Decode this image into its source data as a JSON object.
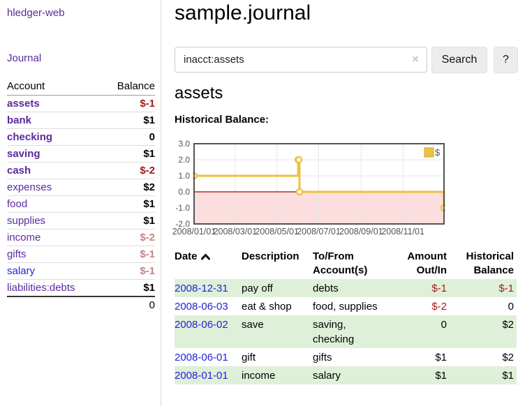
{
  "colors": {
    "link_purple": "#5b2a9d",
    "link_blue": "#2222dd",
    "negative_strong": "#9e1b1b",
    "negative_soft": "#c48484",
    "row_stripe_green": "#dff0d8",
    "chart_series_gold": "#EDC240",
    "chart_negative_fill": "#fcdede",
    "chart_zero_line": "#a40000",
    "chart_grid": "#e6e6e6",
    "chart_border": "#545454",
    "axis_text": "#545454"
  },
  "sidebar": {
    "brand": "hledger-web",
    "nav_journal": "Journal",
    "accounts": {
      "header_account": "Account",
      "header_balance": "Balance",
      "rows": [
        {
          "name": "assets",
          "indent": 0,
          "bold": true,
          "balance": "$-1",
          "neg": "strong",
          "link": "purple"
        },
        {
          "name": "bank",
          "indent": 1,
          "bold": true,
          "balance": "$1",
          "neg": "none",
          "link": "purple"
        },
        {
          "name": "checking",
          "indent": 2,
          "bold": true,
          "balance": "0",
          "neg": "none",
          "link": "purple"
        },
        {
          "name": "saving",
          "indent": 2,
          "bold": true,
          "balance": "$1",
          "neg": "none",
          "link": "purple"
        },
        {
          "name": "cash",
          "indent": 1,
          "bold": true,
          "balance": "$-2",
          "neg": "strong",
          "link": "purple"
        },
        {
          "name": "expenses",
          "indent": 0,
          "bold": false,
          "balance": "$2",
          "neg": "none",
          "link": "purple"
        },
        {
          "name": "food",
          "indent": 1,
          "bold": false,
          "balance": "$1",
          "neg": "none",
          "link": "purple"
        },
        {
          "name": "supplies",
          "indent": 1,
          "bold": false,
          "balance": "$1",
          "neg": "none",
          "link": "purple"
        },
        {
          "name": "income",
          "indent": 0,
          "bold": false,
          "balance": "$-2",
          "neg": "soft",
          "link": "purple"
        },
        {
          "name": "gifts",
          "indent": 1,
          "bold": false,
          "balance": "$-1",
          "neg": "soft",
          "link": "purple"
        },
        {
          "name": "salary",
          "indent": 1,
          "bold": false,
          "balance": "$-1",
          "neg": "soft",
          "link": "blue"
        },
        {
          "name": "liabilities:debts",
          "indent": 0,
          "bold": false,
          "balance": "$1",
          "neg": "none",
          "link": "purple"
        }
      ],
      "total": "0"
    }
  },
  "main": {
    "title": "sample.journal",
    "search": {
      "value": "inacct:assets",
      "clear": "×",
      "button": "Search",
      "help": "?"
    },
    "heading": "assets",
    "chart_label": "Historical Balance:"
  },
  "chart_data": {
    "type": "line",
    "steps": true,
    "title": "Historical Balance",
    "series": [
      {
        "name": "$",
        "color": "#EDC240",
        "points": [
          [
            "2008-01-01",
            1.0
          ],
          [
            "2008-06-01",
            2.0
          ],
          [
            "2008-06-02",
            2.0
          ],
          [
            "2008-06-03",
            0.0
          ],
          [
            "2008-12-31",
            -1.0
          ]
        ]
      }
    ],
    "x_range": [
      "2008-01-01",
      "2008-12-31"
    ],
    "ylim": [
      -2.0,
      3.0
    ],
    "y_ticks": [
      {
        "v": 3,
        "label": "3.0"
      },
      {
        "v": 2,
        "label": "2.0"
      },
      {
        "v": 1,
        "label": "1.0"
      },
      {
        "v": 0,
        "label": "0.0"
      },
      {
        "v": -1,
        "label": "-1.0"
      },
      {
        "v": -2,
        "label": "-2.0"
      }
    ],
    "x_ticks": [
      {
        "d": "2008-01-01",
        "label": "2008/01/01"
      },
      {
        "d": "2008-03-01",
        "label": "2008/03/01"
      },
      {
        "d": "2008-05-01",
        "label": "2008/05/01"
      },
      {
        "d": "2008-07-01",
        "label": "2008/07/01"
      },
      {
        "d": "2008-09-01",
        "label": "2008/09/01"
      },
      {
        "d": "2008-11-01",
        "label": "2008/11/01"
      }
    ],
    "legend": {
      "label": "$",
      "position": "top-right"
    },
    "grid": true,
    "negative_region_shaded": true
  },
  "register": {
    "headers": {
      "date": "Date",
      "description": "Description",
      "accounts": "To/From Account(s)",
      "amount": "Amount Out/In",
      "balance": "Historical Balance"
    },
    "sort": {
      "column": "date",
      "direction": "ascending"
    },
    "rows": [
      {
        "date": "2008-12-31",
        "description": "pay off",
        "accounts": "debts",
        "amount": "$-1",
        "amount_neg": true,
        "balance": "$-1",
        "balance_neg": true,
        "stripe": true
      },
      {
        "date": "2008-06-03",
        "description": "eat & shop",
        "accounts": "food, supplies",
        "amount": "$-2",
        "amount_neg": true,
        "balance": "0",
        "balance_neg": false,
        "stripe": false
      },
      {
        "date": "2008-06-02",
        "description": "save",
        "accounts": "saving, checking",
        "amount": "0",
        "amount_neg": false,
        "balance": "$2",
        "balance_neg": false,
        "stripe": true
      },
      {
        "date": "2008-06-01",
        "description": "gift",
        "accounts": "gifts",
        "amount": "$1",
        "amount_neg": false,
        "balance": "$2",
        "balance_neg": false,
        "stripe": false
      },
      {
        "date": "2008-01-01",
        "description": "income",
        "accounts": "salary",
        "amount": "$1",
        "amount_neg": false,
        "balance": "$1",
        "balance_neg": false,
        "stripe": true
      }
    ]
  }
}
